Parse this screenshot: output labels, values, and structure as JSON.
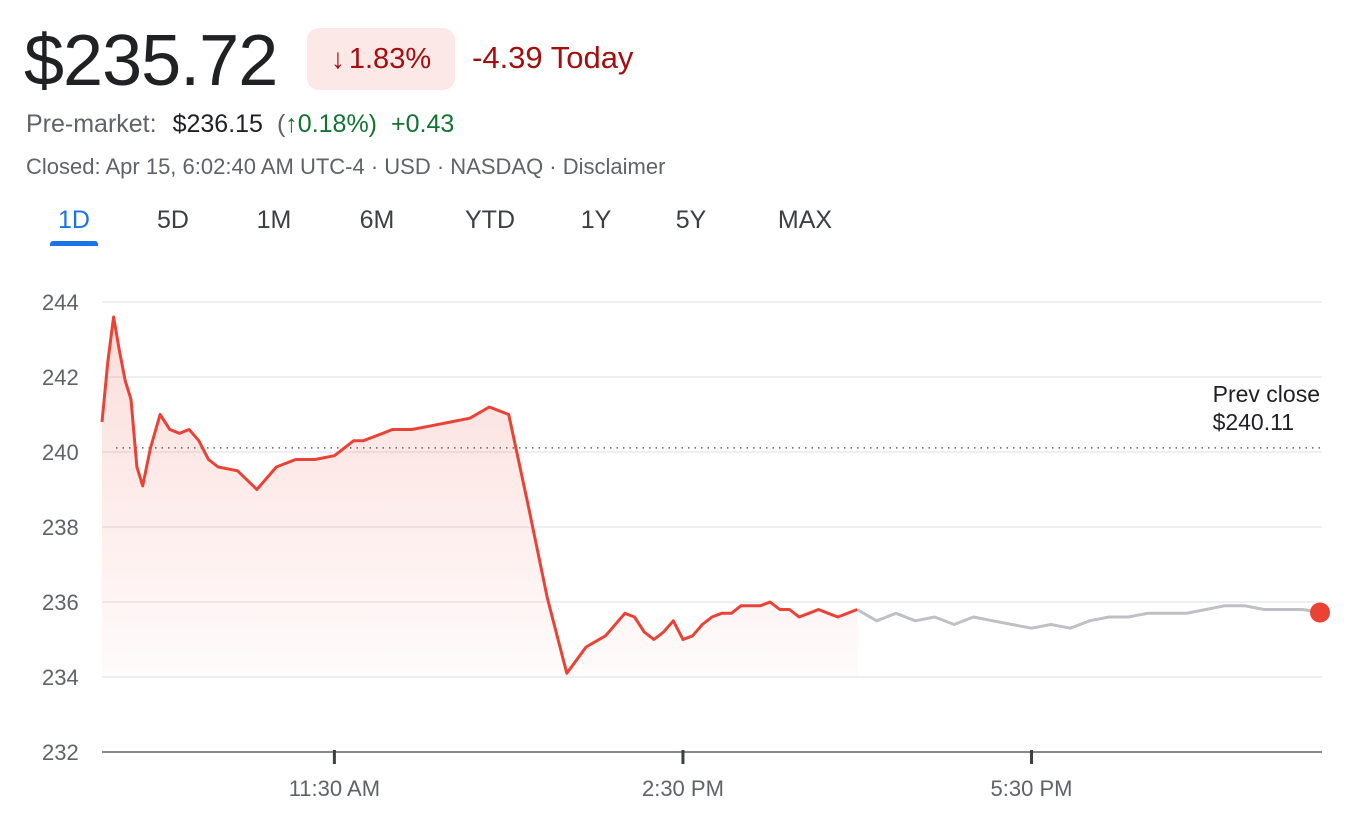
{
  "quote": {
    "price": "$235.72",
    "change_arrow": "↓",
    "change_percent": "1.83%",
    "change_today": "-4.39 Today",
    "premarket_label": "Pre-market:",
    "premarket_price": "$236.15",
    "premarket_open_paren": "(",
    "premarket_arrow": "↑",
    "premarket_percent": "0.18%)",
    "premarket_change": "+0.43",
    "meta": "Closed: Apr 15, 6:02:40 AM UTC-4 · USD · NASDAQ · Disclaimer"
  },
  "tabs": [
    {
      "label": "1D",
      "active": true
    },
    {
      "label": "5D"
    },
    {
      "label": "1M"
    },
    {
      "label": "6M"
    },
    {
      "label": "YTD"
    },
    {
      "label": "1Y"
    },
    {
      "label": "5Y"
    },
    {
      "label": "MAX"
    }
  ],
  "colors": {
    "down": "#ea4335",
    "down_text": "#a50e0e",
    "up_text": "#137333",
    "after_hours": "#bdc1c6",
    "accent": "#1a73e8"
  },
  "chart_data": {
    "type": "line",
    "ylim": [
      232,
      244
    ],
    "yticks": [
      "244",
      "242",
      "240",
      "238",
      "236",
      "234",
      "232"
    ],
    "xticks": [
      {
        "label": "11:30 AM",
        "x": "11:30"
      },
      {
        "label": "2:30 PM",
        "x": "14:30"
      },
      {
        "label": "5:30 PM",
        "x": "17:30"
      }
    ],
    "xlim": [
      "09:30",
      "20:00"
    ],
    "grid": true,
    "prev_close": {
      "label_line1": "Prev close",
      "label_line2": "$240.11",
      "value": 240.11
    },
    "series": [
      {
        "session": "regular",
        "x": [
          "09:30",
          "09:33",
          "09:36",
          "09:39",
          "09:42",
          "09:45",
          "09:48",
          "09:51",
          "09:55",
          "10:00",
          "10:05",
          "10:10",
          "10:15",
          "10:20",
          "10:25",
          "10:30",
          "10:40",
          "10:50",
          "11:00",
          "11:10",
          "11:20",
          "11:30",
          "11:40",
          "11:45",
          "11:50",
          "11:55",
          "12:00",
          "12:10",
          "12:20",
          "12:30",
          "12:40",
          "12:50",
          "13:00",
          "13:10",
          "13:20",
          "13:30",
          "13:40",
          "13:50",
          "14:00",
          "14:05",
          "14:10",
          "14:15",
          "14:20",
          "14:25",
          "14:30",
          "14:35",
          "14:40",
          "14:45",
          "14:50",
          "14:55",
          "15:00",
          "15:05",
          "15:10",
          "15:15",
          "15:20",
          "15:25",
          "15:30",
          "15:35",
          "15:40",
          "15:45",
          "15:50",
          "16:00"
        ],
        "values": [
          240.8,
          242.4,
          243.6,
          242.7,
          241.9,
          241.4,
          239.6,
          239.1,
          240.1,
          241.0,
          240.6,
          240.5,
          240.6,
          240.3,
          239.8,
          239.6,
          239.5,
          239.0,
          239.6,
          239.8,
          239.8,
          239.9,
          240.3,
          240.3,
          240.4,
          240.5,
          240.6,
          240.6,
          240.7,
          240.8,
          240.9,
          241.2,
          241.0,
          238.6,
          236.1,
          234.1,
          234.8,
          235.1,
          235.7,
          235.6,
          235.2,
          235.0,
          235.2,
          235.5,
          235.0,
          235.1,
          235.4,
          235.6,
          235.7,
          235.7,
          235.9,
          235.9,
          235.9,
          236.0,
          235.8,
          235.8,
          235.6,
          235.7,
          235.8,
          235.7,
          235.6,
          235.8
        ]
      },
      {
        "session": "after-hours",
        "x": [
          "16:00",
          "16:10",
          "16:20",
          "16:30",
          "16:40",
          "16:50",
          "17:00",
          "17:10",
          "17:20",
          "17:30",
          "17:40",
          "17:50",
          "18:00",
          "18:10",
          "18:20",
          "18:30",
          "18:40",
          "18:50",
          "19:00",
          "19:10",
          "19:20",
          "19:30",
          "19:40",
          "19:50",
          "20:00"
        ],
        "values": [
          235.8,
          235.5,
          235.7,
          235.5,
          235.6,
          235.4,
          235.6,
          235.5,
          235.4,
          235.3,
          235.4,
          235.3,
          235.5,
          235.6,
          235.6,
          235.7,
          235.7,
          235.7,
          235.8,
          235.9,
          235.9,
          235.8,
          235.8,
          235.8,
          235.72
        ]
      }
    ]
  }
}
